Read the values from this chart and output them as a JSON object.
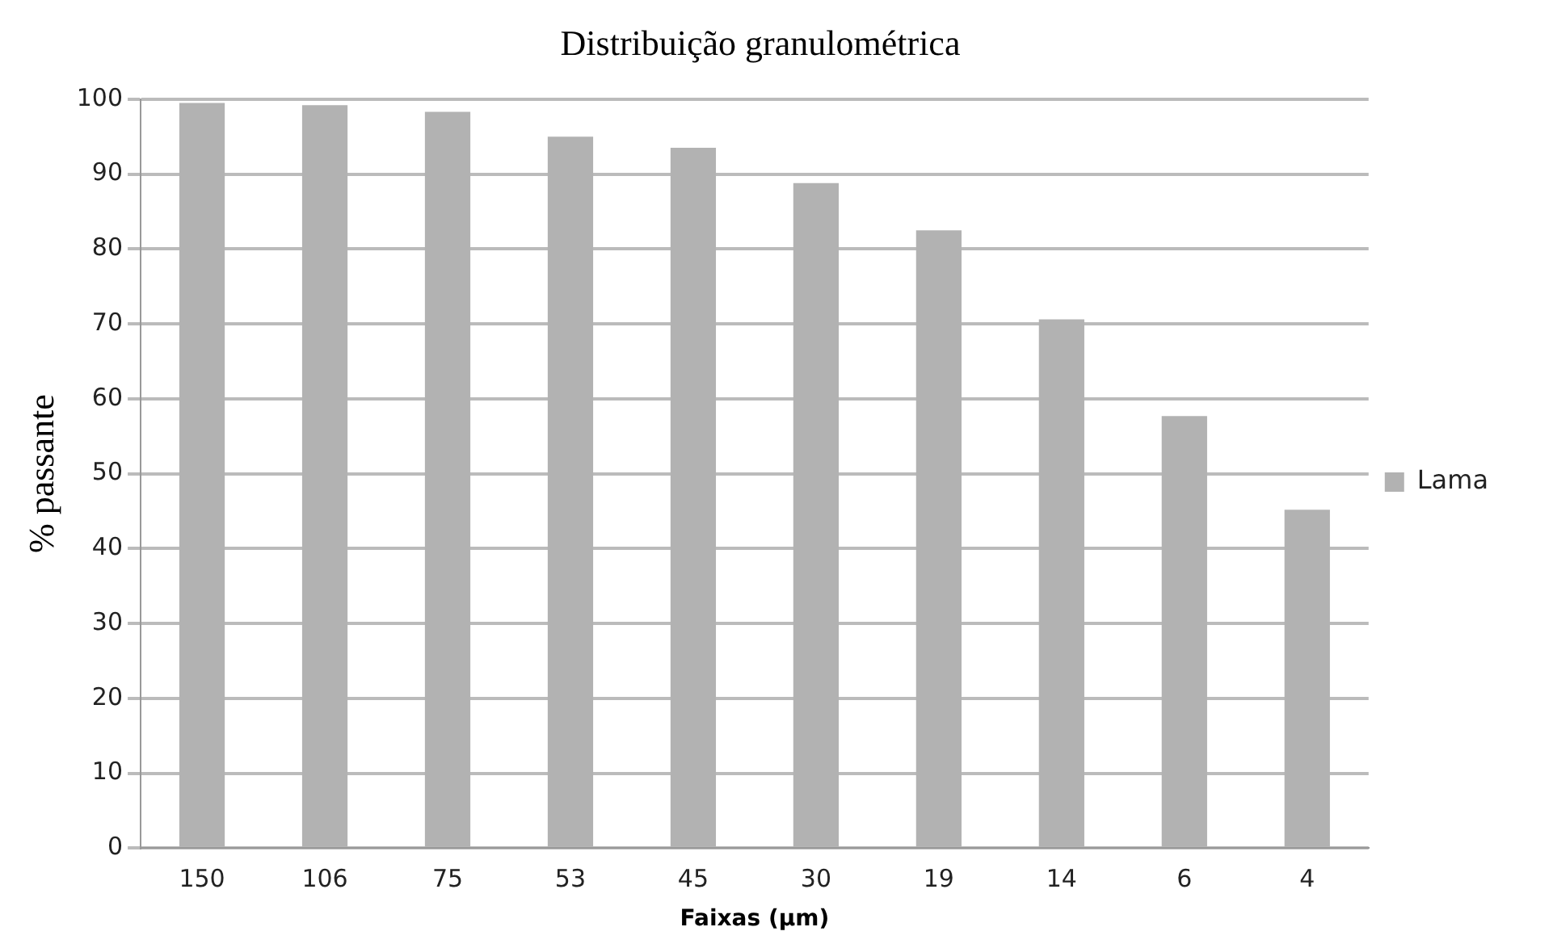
{
  "chart_data": {
    "type": "bar",
    "title": "Distribuição granulométrica",
    "xlabel": "Faixas (µm)",
    "ylabel": "% passante",
    "categories": [
      "150",
      "106",
      "75",
      "53",
      "45",
      "30",
      "19",
      "14",
      "6",
      "4"
    ],
    "series": [
      {
        "name": "Lama",
        "color": "#b2b2b2",
        "values": [
          99.5,
          99.2,
          98.3,
          95,
          93.5,
          88.8,
          82.5,
          70.6,
          57.7,
          45.2
        ]
      }
    ],
    "ylim": [
      0,
      100
    ],
    "yticks": [
      0,
      10,
      20,
      30,
      40,
      50,
      60,
      70,
      80,
      90,
      100
    ],
    "grid": "y",
    "legend": "right"
  }
}
